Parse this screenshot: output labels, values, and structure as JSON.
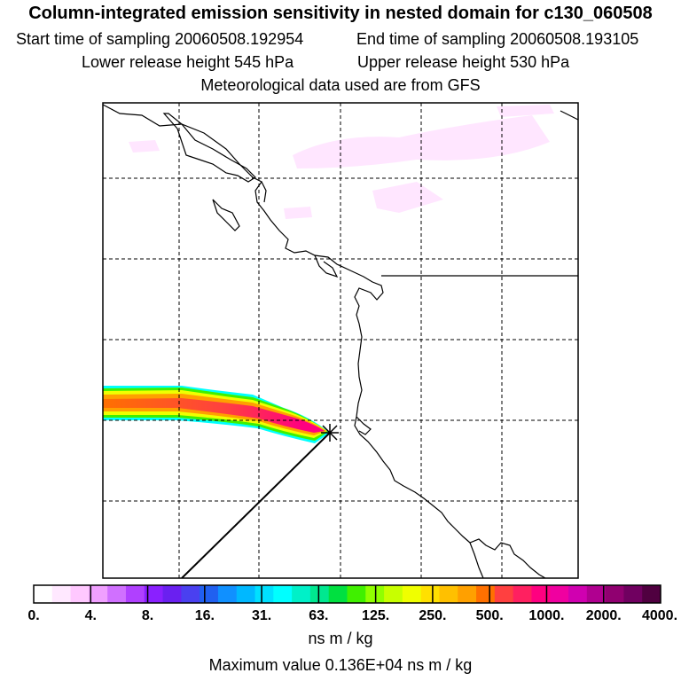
{
  "header": {
    "title": "Column-integrated emission sensitivity in nested domain for c130_060508",
    "start_label": "Start time of sampling 20060508.192954",
    "end_label": "End time of sampling 20060508.193105",
    "lower_label": "Lower release height  545 hPa",
    "upper_label": "Upper release height  530 hPa",
    "met_label": "Meteorological data used are from GFS"
  },
  "colorbar": {
    "tick_labels": [
      "0.",
      "4.",
      "8.",
      "16.",
      "31.",
      "63.",
      "125.",
      "250.",
      "500.",
      "1000.",
      "2000.",
      "4000."
    ],
    "units": "ns m / kg",
    "colors": [
      "#ffffff",
      "#ffe8ff",
      "#ffc8ff",
      "#f0a0ff",
      "#d070ff",
      "#b040ff",
      "#8a20ff",
      "#6a20f0",
      "#4a40f0",
      "#2060f0",
      "#1090ff",
      "#00b8ff",
      "#00e0ff",
      "#00ffff",
      "#00f0c8",
      "#00e890",
      "#00e040",
      "#40f000",
      "#90ff00",
      "#c8ff00",
      "#f0ff00",
      "#ffe000",
      "#ffc000",
      "#ffa000",
      "#ff7000",
      "#ff4040",
      "#ff2060",
      "#ff0080",
      "#f000a0",
      "#d000b0",
      "#b00090",
      "#900070",
      "#700060",
      "#500040"
    ]
  },
  "footer": {
    "max_value": "Maximum value  0.136E+04 ns m / kg"
  },
  "map": {
    "release_marker": "release-point-icon",
    "plume_colors": [
      "#00ffff",
      "#ffe000",
      "#ff7000",
      "#ff2060"
    ]
  }
}
